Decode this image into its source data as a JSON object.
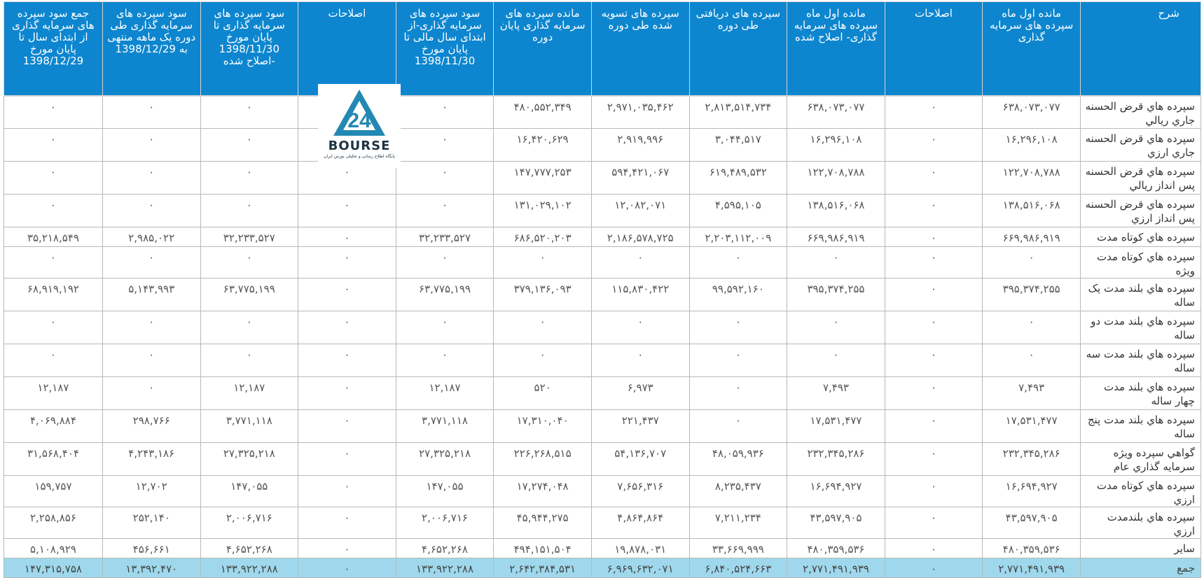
{
  "logo": {
    "name": "BOURSE",
    "number": "24",
    "tagline": "پایگاه اطلاع رسانی و تحلیلی بورس ایران"
  },
  "headers": {
    "desc": "شرح",
    "h1": "مانده اول ماه سپرده های سرمایه گذاری",
    "h2": "اصلاحات",
    "h3": "مانده اول ماه سپرده های سرمایه گذاری- اصلاح شده",
    "h4": "سپرده های دریافتی طی دوره",
    "h5": "سپرده های تسویه شده طی دوره",
    "h6": "مانده سپرده های سرمایه گذاری پایان دوره",
    "h7": "سود سپرده های سرمایه گذاری-از ابتدای سال مالی تا پایان مورخ 1398/11/30",
    "h8": "اصلاحات",
    "h9": "سود سپرده های سرمایه گذاری تا پایان مورخ 1398/11/30 -اصلاح شده",
    "h10": "سود سپرده های سرمایه گذاری طی دوره یک ماهه منتهی به 1398/12/29",
    "h11": "جمع سود سپرده های سرمایه گذاری از ابتدای سال تا پایان مورخ 1398/12/29"
  },
  "rows": [
    {
      "desc": "سپرده هاي قرض الحسنه جاري ريالي",
      "c1": "۶۳۸,۰۷۳,۰۷۷",
      "c2": "۰",
      "c3": "۶۳۸,۰۷۳,۰۷۷",
      "c4": "۲,۸۱۳,۵۱۴,۷۳۴",
      "c5": "۲,۹۷۱,۰۳۵,۴۶۲",
      "c6": "۴۸۰,۵۵۲,۳۴۹",
      "c7": "۰",
      "c8": "",
      "c9": "۰",
      "c10": "۰",
      "c11": "۰"
    },
    {
      "desc": "سپرده هاي قرض الحسنه جاري ارزي",
      "c1": "۱۶,۲۹۶,۱۰۸",
      "c2": "۰",
      "c3": "۱۶,۲۹۶,۱۰۸",
      "c4": "۳,۰۴۴,۵۱۷",
      "c5": "۲,۹۱۹,۹۹۶",
      "c6": "۱۶,۴۲۰,۶۲۹",
      "c7": "۰",
      "c8": "",
      "c9": "۰",
      "c10": "۰",
      "c11": "۰"
    },
    {
      "desc": "سپرده هاي قرض الحسنه پس انداز ريالي",
      "c1": "۱۲۲,۷۰۸,۷۸۸",
      "c2": "۰",
      "c3": "۱۲۲,۷۰۸,۷۸۸",
      "c4": "۶۱۹,۴۸۹,۵۳۲",
      "c5": "۵۹۴,۴۲۱,۰۶۷",
      "c6": "۱۴۷,۷۷۷,۲۵۳",
      "c7": "۰",
      "c8": "۰",
      "c9": "۰",
      "c10": "۰",
      "c11": "۰"
    },
    {
      "desc": "سپرده هاي قرض الحسنه پس انداز ارزي",
      "c1": "۱۳۸,۵۱۶,۰۶۸",
      "c2": "۰",
      "c3": "۱۳۸,۵۱۶,۰۶۸",
      "c4": "۴,۵۹۵,۱۰۵",
      "c5": "۱۲,۰۸۲,۰۷۱",
      "c6": "۱۳۱,۰۲۹,۱۰۲",
      "c7": "۰",
      "c8": "۰",
      "c9": "۰",
      "c10": "۰",
      "c11": "۰"
    },
    {
      "desc": "سپرده هاي کوتاه مدت",
      "c1": "۶۶۹,۹۸۶,۹۱۹",
      "c2": "۰",
      "c3": "۶۶۹,۹۸۶,۹۱۹",
      "c4": "۲,۲۰۳,۱۱۲,۰۰۹",
      "c5": "۲,۱۸۶,۵۷۸,۷۲۵",
      "c6": "۶۸۶,۵۲۰,۲۰۳",
      "c7": "۳۲,۲۳۳,۵۲۷",
      "c8": "۰",
      "c9": "۳۲,۲۳۳,۵۲۷",
      "c10": "۲,۹۸۵,۰۲۲",
      "c11": "۳۵,۲۱۸,۵۴۹"
    },
    {
      "desc": "سپرده هاي کوتاه مدت ويژه",
      "c1": "۰",
      "c2": "۰",
      "c3": "۰",
      "c4": "۰",
      "c5": "۰",
      "c6": "۰",
      "c7": "۰",
      "c8": "۰",
      "c9": "۰",
      "c10": "۰",
      "c11": "۰"
    },
    {
      "desc": "سپرده هاي بلند مدت يک ساله",
      "c1": "۳۹۵,۳۷۴,۲۵۵",
      "c2": "۰",
      "c3": "۳۹۵,۳۷۴,۲۵۵",
      "c4": "۹۹,۵۹۲,۱۶۰",
      "c5": "۱۱۵,۸۳۰,۴۲۲",
      "c6": "۳۷۹,۱۳۶,۰۹۳",
      "c7": "۶۳,۷۷۵,۱۹۹",
      "c8": "۰",
      "c9": "۶۳,۷۷۵,۱۹۹",
      "c10": "۵,۱۴۳,۹۹۳",
      "c11": "۶۸,۹۱۹,۱۹۲"
    },
    {
      "desc": "سپرده هاي بلند مدت دو ساله",
      "c1": "۰",
      "c2": "۰",
      "c3": "۰",
      "c4": "۰",
      "c5": "۰",
      "c6": "۰",
      "c7": "۰",
      "c8": "۰",
      "c9": "۰",
      "c10": "۰",
      "c11": "۰"
    },
    {
      "desc": "سپرده هاي بلند مدت سه ساله",
      "c1": "۰",
      "c2": "۰",
      "c3": "۰",
      "c4": "۰",
      "c5": "۰",
      "c6": "۰",
      "c7": "۰",
      "c8": "۰",
      "c9": "۰",
      "c10": "۰",
      "c11": "۰"
    },
    {
      "desc": "سپرده هاي بلند مدت چهار ساله",
      "c1": "۷,۴۹۳",
      "c2": "۰",
      "c3": "۷,۴۹۳",
      "c4": "۰",
      "c5": "۶,۹۷۳",
      "c6": "۵۲۰",
      "c7": "۱۲,۱۸۷",
      "c8": "۰",
      "c9": "۱۲,۱۸۷",
      "c10": "۰",
      "c11": "۱۲,۱۸۷"
    },
    {
      "desc": "سپرده هاي بلند مدت پنج ساله",
      "c1": "۱۷,۵۳۱,۴۷۷",
      "c2": "۰",
      "c3": "۱۷,۵۳۱,۴۷۷",
      "c4": "۰",
      "c5": "۲۲۱,۴۳۷",
      "c6": "۱۷,۳۱۰,۰۴۰",
      "c7": "۳,۷۷۱,۱۱۸",
      "c8": "۰",
      "c9": "۳,۷۷۱,۱۱۸",
      "c10": "۲۹۸,۷۶۶",
      "c11": "۴,۰۶۹,۸۸۴"
    },
    {
      "desc": "گواهي سپرده ويژه سرمايه گذاري عام",
      "c1": "۲۳۲,۳۴۵,۲۸۶",
      "c2": "۰",
      "c3": "۲۳۲,۳۴۵,۲۸۶",
      "c4": "۴۸,۰۵۹,۹۳۶",
      "c5": "۵۴,۱۳۶,۷۰۷",
      "c6": "۲۲۶,۲۶۸,۵۱۵",
      "c7": "۲۷,۳۲۵,۲۱۸",
      "c8": "۰",
      "c9": "۲۷,۳۲۵,۲۱۸",
      "c10": "۴,۲۴۳,۱۸۶",
      "c11": "۳۱,۵۶۸,۴۰۴"
    },
    {
      "desc": "سپرده هاي کوتاه مدت ارزي",
      "c1": "۱۶,۶۹۴,۹۲۷",
      "c2": "۰",
      "c3": "۱۶,۶۹۴,۹۲۷",
      "c4": "۸,۲۳۵,۴۳۷",
      "c5": "۷,۶۵۶,۳۱۶",
      "c6": "۱۷,۲۷۴,۰۴۸",
      "c7": "۱۴۷,۰۵۵",
      "c8": "۰",
      "c9": "۱۴۷,۰۵۵",
      "c10": "۱۲,۷۰۲",
      "c11": "۱۵۹,۷۵۷"
    },
    {
      "desc": "سپرده هاي بلندمدت ارزي",
      "c1": "۴۳,۵۹۷,۹۰۵",
      "c2": "۰",
      "c3": "۴۳,۵۹۷,۹۰۵",
      "c4": "۷,۲۱۱,۲۳۴",
      "c5": "۴,۸۶۴,۸۶۴",
      "c6": "۴۵,۹۴۴,۲۷۵",
      "c7": "۲,۰۰۶,۷۱۶",
      "c8": "۰",
      "c9": "۲,۰۰۶,۷۱۶",
      "c10": "۲۵۲,۱۴۰",
      "c11": "۲,۲۵۸,۸۵۶"
    },
    {
      "desc": "ساير",
      "c1": "۴۸۰,۳۵۹,۵۳۶",
      "c2": "۰",
      "c3": "۴۸۰,۳۵۹,۵۳۶",
      "c4": "۳۳,۶۶۹,۹۹۹",
      "c5": "۱۹,۸۷۸,۰۳۱",
      "c6": "۴۹۴,۱۵۱,۵۰۴",
      "c7": "۴,۶۵۲,۲۶۸",
      "c8": "۰",
      "c9": "۴,۶۵۲,۲۶۸",
      "c10": "۴۵۶,۶۶۱",
      "c11": "۵,۱۰۸,۹۲۹"
    }
  ],
  "total": {
    "desc": "جمع",
    "c1": "۲,۷۷۱,۴۹۱,۹۳۹",
    "c2": "۰",
    "c3": "۲,۷۷۱,۴۹۱,۹۳۹",
    "c4": "۶,۸۴۰,۵۲۴,۶۶۳",
    "c5": "۶,۹۶۹,۶۳۲,۰۷۱",
    "c6": "۲,۶۴۲,۳۸۴,۵۳۱",
    "c7": "۱۳۳,۹۲۲,۲۸۸",
    "c8": "۰",
    "c9": "۱۳۳,۹۲۲,۲۸۸",
    "c10": "۱۳,۳۹۲,۴۷۰",
    "c11": "۱۴۷,۳۱۵,۷۵۸"
  }
}
